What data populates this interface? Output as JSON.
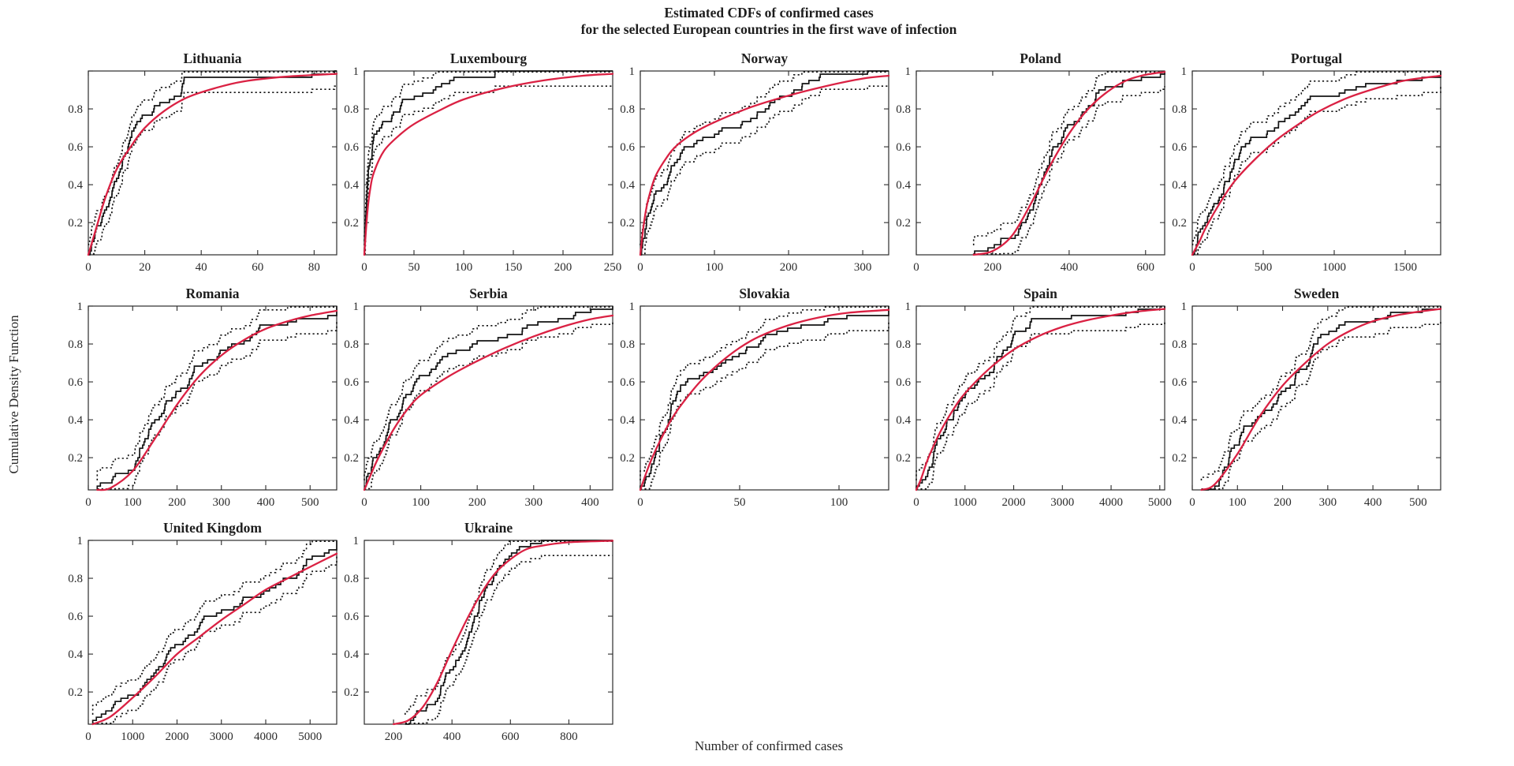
{
  "figure": {
    "title_line1": "Estimated CDFs of confirmed cases",
    "title_line2": "for the  selected  European countries in the first wave of infection",
    "xlabel": "Number of confirmed cases",
    "ylabel": "Cumulative Density Function"
  },
  "colors": {
    "fit_curve": "#da2143",
    "empirical": "#141414",
    "bounds": "#141414",
    "axis": "#2b2b2b",
    "background": "#ffffff"
  },
  "legend": {
    "shown": false,
    "series": [
      "Empirical CDF (stepped, black)",
      "Confidence bounds (dotted)",
      "Fitted CDF (red)"
    ]
  },
  "chart_data": [
    {
      "type": "line",
      "subtype": "cdf-empirical-with-fit",
      "title": "Lithuania",
      "xlim": [
        0,
        88
      ],
      "xticks": [
        0,
        20,
        40,
        60,
        80
      ],
      "ylim": [
        0.03,
        1
      ],
      "yticks": [
        0.2,
        0.4,
        0.6,
        0.8,
        1
      ],
      "ytick_labels": [
        "0.2",
        "0.4",
        "0.6",
        "0.8",
        ""
      ],
      "fit": [
        [
          0,
          0.02
        ],
        [
          3,
          0.18
        ],
        [
          6,
          0.33
        ],
        [
          10,
          0.48
        ],
        [
          15,
          0.6
        ],
        [
          20,
          0.7
        ],
        [
          27,
          0.79
        ],
        [
          35,
          0.86
        ],
        [
          45,
          0.91
        ],
        [
          55,
          0.945
        ],
        [
          70,
          0.97
        ],
        [
          88,
          0.985
        ]
      ],
      "n": 60,
      "seed": 11,
      "band": 0.08
    },
    {
      "type": "line",
      "subtype": "cdf-empirical-with-fit",
      "title": "Luxembourg",
      "xlim": [
        0,
        250
      ],
      "xticks": [
        0,
        50,
        100,
        150,
        200,
        250
      ],
      "ylim": [
        0.03,
        1
      ],
      "yticks": [
        0.2,
        0.4,
        0.6,
        0.8,
        1
      ],
      "ytick_labels": [
        "0.2",
        "0.4",
        "0.6",
        "0.8",
        "1"
      ],
      "fit": [
        [
          0,
          0.03
        ],
        [
          3,
          0.25
        ],
        [
          6,
          0.38
        ],
        [
          10,
          0.47
        ],
        [
          20,
          0.58
        ],
        [
          35,
          0.66
        ],
        [
          50,
          0.72
        ],
        [
          75,
          0.79
        ],
        [
          100,
          0.85
        ],
        [
          140,
          0.91
        ],
        [
          180,
          0.95
        ],
        [
          220,
          0.975
        ],
        [
          250,
          0.985
        ]
      ],
      "n": 60,
      "seed": 22,
      "band": 0.08
    },
    {
      "type": "line",
      "subtype": "cdf-empirical-with-fit",
      "title": "Norway",
      "xlim": [
        0,
        335
      ],
      "xticks": [
        0,
        100,
        200,
        300
      ],
      "ylim": [
        0.03,
        1
      ],
      "yticks": [
        0.2,
        0.4,
        0.6,
        0.8,
        1
      ],
      "ytick_labels": [
        "0.2",
        "0.4",
        "0.6",
        "0.8",
        "1"
      ],
      "fit": [
        [
          0,
          0.02
        ],
        [
          5,
          0.2
        ],
        [
          10,
          0.31
        ],
        [
          20,
          0.44
        ],
        [
          35,
          0.54
        ],
        [
          50,
          0.61
        ],
        [
          75,
          0.68
        ],
        [
          100,
          0.73
        ],
        [
          150,
          0.81
        ],
        [
          200,
          0.87
        ],
        [
          250,
          0.92
        ],
        [
          300,
          0.96
        ],
        [
          335,
          0.975
        ]
      ],
      "n": 60,
      "seed": 33,
      "band": 0.08
    },
    {
      "type": "line",
      "subtype": "cdf-empirical-with-fit",
      "title": "Poland",
      "xlim": [
        0,
        650
      ],
      "xticks": [
        0,
        200,
        400,
        600
      ],
      "ylim": [
        0.03,
        1
      ],
      "yticks": [
        0.2,
        0.4,
        0.6,
        0.8,
        1
      ],
      "ytick_labels": [
        "0.2",
        "0.4",
        "0.6",
        "0.8",
        "1"
      ],
      "fit": [
        [
          150,
          0.01
        ],
        [
          200,
          0.05
        ],
        [
          250,
          0.13
        ],
        [
          300,
          0.3
        ],
        [
          350,
          0.5
        ],
        [
          400,
          0.67
        ],
        [
          450,
          0.8
        ],
        [
          500,
          0.89
        ],
        [
          550,
          0.95
        ],
        [
          600,
          0.98
        ],
        [
          650,
          0.995
        ]
      ],
      "n": 60,
      "seed": 44,
      "band": 0.08
    },
    {
      "type": "line",
      "subtype": "cdf-empirical-with-fit",
      "title": "Portugal",
      "xlim": [
        0,
        1750
      ],
      "xticks": [
        0,
        500,
        1000,
        1500
      ],
      "ylim": [
        0.03,
        1
      ],
      "yticks": [
        0.2,
        0.4,
        0.6,
        0.8,
        1
      ],
      "ytick_labels": [
        "0.2",
        "0.4",
        "0.6",
        "0.8",
        "1"
      ],
      "fit": [
        [
          0,
          0.02
        ],
        [
          50,
          0.1
        ],
        [
          100,
          0.18
        ],
        [
          200,
          0.31
        ],
        [
          300,
          0.42
        ],
        [
          450,
          0.54
        ],
        [
          600,
          0.64
        ],
        [
          750,
          0.72
        ],
        [
          900,
          0.79
        ],
        [
          1100,
          0.86
        ],
        [
          1300,
          0.91
        ],
        [
          1500,
          0.95
        ],
        [
          1750,
          0.975
        ]
      ],
      "n": 60,
      "seed": 55,
      "band": 0.08
    },
    {
      "type": "line",
      "subtype": "cdf-empirical-with-fit",
      "title": "Romania",
      "xlim": [
        0,
        560
      ],
      "xticks": [
        0,
        100,
        200,
        300,
        400,
        500
      ],
      "ylim": [
        0.03,
        1
      ],
      "yticks": [
        0.2,
        0.4,
        0.6,
        0.8,
        1
      ],
      "ytick_labels": [
        "0.2",
        "0.4",
        "0.6",
        "0.8",
        "1"
      ],
      "fit": [
        [
          20,
          0.01
        ],
        [
          50,
          0.04
        ],
        [
          100,
          0.13
        ],
        [
          150,
          0.3
        ],
        [
          200,
          0.48
        ],
        [
          250,
          0.63
        ],
        [
          300,
          0.74
        ],
        [
          350,
          0.82
        ],
        [
          400,
          0.88
        ],
        [
          450,
          0.92
        ],
        [
          500,
          0.95
        ],
        [
          560,
          0.975
        ]
      ],
      "n": 60,
      "seed": 66,
      "band": 0.08
    },
    {
      "type": "line",
      "subtype": "cdf-empirical-with-fit",
      "title": "Serbia",
      "xlim": [
        0,
        440
      ],
      "xticks": [
        0,
        100,
        200,
        300,
        400
      ],
      "ylim": [
        0.03,
        1
      ],
      "yticks": [
        0.2,
        0.4,
        0.6,
        0.8,
        1
      ],
      "ytick_labels": [
        "0.2",
        "0.4",
        "0.6",
        "0.8",
        "1"
      ],
      "fit": [
        [
          0,
          0.03
        ],
        [
          10,
          0.1
        ],
        [
          25,
          0.2
        ],
        [
          50,
          0.34
        ],
        [
          75,
          0.45
        ],
        [
          100,
          0.53
        ],
        [
          150,
          0.63
        ],
        [
          200,
          0.71
        ],
        [
          250,
          0.78
        ],
        [
          300,
          0.84
        ],
        [
          350,
          0.89
        ],
        [
          400,
          0.93
        ],
        [
          440,
          0.95
        ]
      ],
      "n": 60,
      "seed": 77,
      "band": 0.08
    },
    {
      "type": "line",
      "subtype": "cdf-empirical-with-fit",
      "title": "Slovakia",
      "xlim": [
        0,
        125
      ],
      "xticks": [
        0,
        50,
        100
      ],
      "ylim": [
        0.03,
        1
      ],
      "yticks": [
        0.2,
        0.4,
        0.6,
        0.8,
        1
      ],
      "ytick_labels": [
        "0.2",
        "0.4",
        "0.6",
        "0.8",
        "1"
      ],
      "fit": [
        [
          0,
          0.03
        ],
        [
          3,
          0.12
        ],
        [
          6,
          0.2
        ],
        [
          10,
          0.29
        ],
        [
          15,
          0.39
        ],
        [
          20,
          0.47
        ],
        [
          30,
          0.6
        ],
        [
          40,
          0.7
        ],
        [
          50,
          0.78
        ],
        [
          60,
          0.84
        ],
        [
          75,
          0.9
        ],
        [
          90,
          0.94
        ],
        [
          105,
          0.965
        ],
        [
          125,
          0.98
        ]
      ],
      "n": 60,
      "seed": 88,
      "band": 0.08
    },
    {
      "type": "line",
      "subtype": "cdf-empirical-with-fit",
      "title": "Spain",
      "xlim": [
        0,
        5100
      ],
      "xticks": [
        0,
        1000,
        2000,
        3000,
        4000,
        5000
      ],
      "ylim": [
        0.03,
        1
      ],
      "yticks": [
        0.2,
        0.4,
        0.6,
        0.8,
        1
      ],
      "ytick_labels": [
        "0.2",
        "0.4",
        "0.6",
        "0.8",
        "1"
      ],
      "fit": [
        [
          0,
          0.02
        ],
        [
          100,
          0.09
        ],
        [
          250,
          0.2
        ],
        [
          500,
          0.34
        ],
        [
          750,
          0.45
        ],
        [
          1000,
          0.54
        ],
        [
          1500,
          0.67
        ],
        [
          2000,
          0.77
        ],
        [
          2500,
          0.84
        ],
        [
          3000,
          0.89
        ],
        [
          3500,
          0.925
        ],
        [
          4000,
          0.95
        ],
        [
          4500,
          0.97
        ],
        [
          5100,
          0.985
        ]
      ],
      "n": 60,
      "seed": 99,
      "band": 0.08
    },
    {
      "type": "line",
      "subtype": "cdf-empirical-with-fit",
      "title": "Sweden",
      "xlim": [
        0,
        550
      ],
      "xticks": [
        0,
        100,
        200,
        300,
        400,
        500
      ],
      "ylim": [
        0.03,
        1
      ],
      "yticks": [
        0.2,
        0.4,
        0.6,
        0.8,
        1
      ],
      "ytick_labels": [
        "0.2",
        "0.4",
        "0.6",
        "0.8",
        "1"
      ],
      "fit": [
        [
          20,
          0.01
        ],
        [
          50,
          0.06
        ],
        [
          100,
          0.22
        ],
        [
          150,
          0.42
        ],
        [
          200,
          0.58
        ],
        [
          250,
          0.7
        ],
        [
          300,
          0.8
        ],
        [
          350,
          0.87
        ],
        [
          400,
          0.92
        ],
        [
          450,
          0.95
        ],
        [
          500,
          0.97
        ],
        [
          550,
          0.985
        ]
      ],
      "n": 60,
      "seed": 110,
      "band": 0.08
    },
    {
      "type": "line",
      "subtype": "cdf-empirical-with-fit",
      "title": "United Kingdom",
      "xlim": [
        0,
        5600
      ],
      "xticks": [
        0,
        1000,
        2000,
        3000,
        4000,
        5000
      ],
      "ylim": [
        0.03,
        1
      ],
      "yticks": [
        0.2,
        0.4,
        0.6,
        0.8,
        1
      ],
      "ytick_labels": [
        "0.2",
        "0.4",
        "0.6",
        "0.8",
        "1"
      ],
      "fit": [
        [
          100,
          0.01
        ],
        [
          500,
          0.07
        ],
        [
          1000,
          0.17
        ],
        [
          1500,
          0.28
        ],
        [
          2000,
          0.4
        ],
        [
          2500,
          0.49
        ],
        [
          3000,
          0.58
        ],
        [
          3500,
          0.66
        ],
        [
          4000,
          0.74
        ],
        [
          4500,
          0.8
        ],
        [
          5000,
          0.86
        ],
        [
          5600,
          0.93
        ]
      ],
      "n": 60,
      "seed": 121,
      "band": 0.08
    },
    {
      "type": "line",
      "subtype": "cdf-empirical-with-fit",
      "title": "Ukraine",
      "xlim": [
        100,
        950
      ],
      "xticks": [
        200,
        400,
        600,
        800
      ],
      "ylim": [
        0.03,
        1
      ],
      "yticks": [
        0.2,
        0.4,
        0.6,
        0.8,
        1
      ],
      "ytick_labels": [
        "0.2",
        "0.4",
        "0.6",
        "0.8",
        "1"
      ],
      "fit": [
        [
          200,
          0.01
        ],
        [
          250,
          0.05
        ],
        [
          300,
          0.12
        ],
        [
          350,
          0.25
        ],
        [
          400,
          0.42
        ],
        [
          450,
          0.58
        ],
        [
          500,
          0.72
        ],
        [
          550,
          0.83
        ],
        [
          600,
          0.9
        ],
        [
          650,
          0.95
        ],
        [
          700,
          0.97
        ],
        [
          800,
          0.99
        ],
        [
          950,
          0.998
        ]
      ],
      "n": 60,
      "seed": 132,
      "band": 0.08
    }
  ]
}
